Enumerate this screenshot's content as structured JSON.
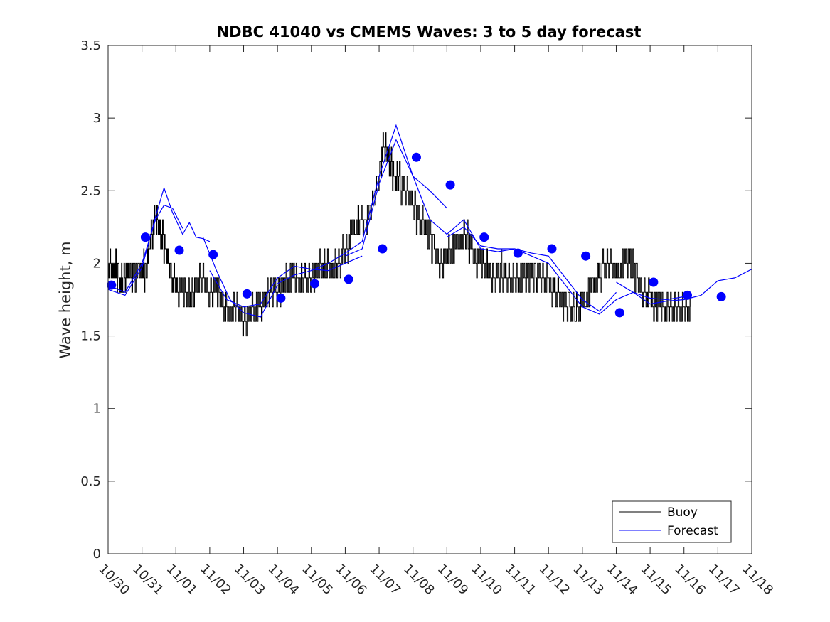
{
  "chart_data": {
    "type": "line",
    "title": "NDBC 41040 vs CMEMS Waves: 3 to 5 day forecast",
    "xlabel": "",
    "ylabel": "Wave height, m",
    "xlim": [
      0,
      19
    ],
    "ylim": [
      0,
      3.5
    ],
    "yticks": [
      0,
      0.5,
      1,
      1.5,
      2,
      2.5,
      3,
      3.5
    ],
    "ytick_labels": [
      "0",
      "0.5",
      "1",
      "1.5",
      "2",
      "2.5",
      "3",
      "3.5"
    ],
    "xtick_labels": [
      "10/30",
      "10/31",
      "11/01",
      "11/02",
      "11/03",
      "11/04",
      "11/05",
      "11/06",
      "11/07",
      "11/08",
      "11/09",
      "11/10",
      "11/11",
      "11/12",
      "11/13",
      "11/14",
      "11/15",
      "11/16",
      "11/17",
      "11/18"
    ],
    "legend": {
      "position": "bottom-right",
      "entries": [
        "Buoy",
        "Forecast"
      ]
    },
    "colors": {
      "buoy": "#000000",
      "forecast": "#0000ff",
      "axes": "#262626"
    },
    "series": [
      {
        "name": "Buoy",
        "color": "#000000",
        "x": [
          0.0,
          0.15,
          0.3,
          0.45,
          0.6,
          0.8,
          1.0,
          1.1,
          1.25,
          1.4,
          1.55,
          1.7,
          1.85,
          2.0,
          2.2,
          2.4,
          2.6,
          2.8,
          3.0,
          3.2,
          3.4,
          3.6,
          3.8,
          4.0,
          4.2,
          4.4,
          4.6,
          4.8,
          5.0,
          5.2,
          5.4,
          5.6,
          5.8,
          6.0,
          6.2,
          6.4,
          6.6,
          6.8,
          7.0,
          7.2,
          7.4,
          7.6,
          7.8,
          8.0,
          8.15,
          8.3,
          8.45,
          8.6,
          8.8,
          9.0,
          9.2,
          9.4,
          9.6,
          9.8,
          10.0,
          10.2,
          10.4,
          10.6,
          10.8,
          11.0,
          11.2,
          11.4,
          11.6,
          11.8,
          12.0,
          12.2,
          12.4,
          12.6,
          12.8,
          13.0,
          13.2,
          13.4,
          13.6,
          13.8,
          14.0,
          14.2,
          14.4,
          14.6,
          14.8,
          15.0,
          15.2,
          15.4,
          15.6,
          15.8,
          16.0,
          16.2,
          16.4,
          16.6,
          16.8,
          17.0,
          17.2
        ],
        "y": [
          1.95,
          2.0,
          1.9,
          1.85,
          1.95,
          1.9,
          2.0,
          1.9,
          2.2,
          2.3,
          2.2,
          2.1,
          1.9,
          1.85,
          1.8,
          1.75,
          1.85,
          1.9,
          1.8,
          1.8,
          1.7,
          1.65,
          1.7,
          1.6,
          1.65,
          1.7,
          1.75,
          1.8,
          1.8,
          1.85,
          1.9,
          1.9,
          1.85,
          1.9,
          1.95,
          2.0,
          1.95,
          2.0,
          2.1,
          2.2,
          2.3,
          2.3,
          2.4,
          2.6,
          2.8,
          2.7,
          2.6,
          2.55,
          2.5,
          2.4,
          2.3,
          2.25,
          2.1,
          2.0,
          2.05,
          2.1,
          2.2,
          2.15,
          2.05,
          2.0,
          1.95,
          1.9,
          1.95,
          1.9,
          1.85,
          1.9,
          1.95,
          1.9,
          1.9,
          1.85,
          1.8,
          1.75,
          1.7,
          1.65,
          1.7,
          1.8,
          1.9,
          1.95,
          2.0,
          1.9,
          2.0,
          2.05,
          1.9,
          1.8,
          1.75,
          1.7,
          1.7,
          1.65,
          1.7,
          1.65,
          1.7
        ]
      },
      {
        "name": "Forecast",
        "color": "#0000ff",
        "segments": [
          {
            "x": [
              0.0,
              0.5,
              1.0,
              1.4,
              1.65,
              1.9,
              2.2,
              2.4,
              2.6,
              2.8,
              3.0
            ],
            "y": [
              1.82,
              1.78,
              1.97,
              2.32,
              2.52,
              2.35,
              2.2,
              2.28,
              2.18,
              2.17,
              2.15
            ]
          },
          {
            "x": [
              0.0,
              0.5,
              1.0,
              1.4,
              1.65,
              1.9,
              2.2
            ],
            "y": [
              1.85,
              1.8,
              2.0,
              2.3,
              2.4,
              2.38,
              2.24
            ]
          },
          {
            "x": [
              2.8,
              3.2,
              3.6,
              4.0,
              4.5,
              5.0
            ],
            "y": [
              2.18,
              1.95,
              1.75,
              1.66,
              1.63,
              1.85
            ]
          },
          {
            "x": [
              3.0,
              3.5,
              4.0,
              4.5,
              5.0,
              5.5,
              6.0,
              6.5,
              7.0,
              7.5
            ],
            "y": [
              1.95,
              1.75,
              1.7,
              1.72,
              1.9,
              1.98,
              1.96,
              1.95,
              2.0,
              2.05
            ]
          },
          {
            "x": [
              5.0,
              5.5,
              6.0,
              6.5,
              7.0,
              7.5,
              8.0,
              8.5,
              9.0,
              9.5,
              10.0
            ],
            "y": [
              1.86,
              1.92,
              1.95,
              2.0,
              2.07,
              2.15,
              2.6,
              2.95,
              2.6,
              2.5,
              2.38
            ]
          },
          {
            "x": [
              7.0,
              7.5,
              8.0,
              8.5,
              9.0,
              9.5,
              10.0,
              10.5,
              11.0,
              11.5,
              12.0
            ],
            "y": [
              2.05,
              2.1,
              2.55,
              2.85,
              2.6,
              2.3,
              2.2,
              2.3,
              2.1,
              2.08,
              2.1
            ]
          },
          {
            "x": [
              10.0,
              10.5,
              11.0,
              11.5,
              12.0,
              12.5,
              13.0,
              13.5,
              14.0,
              14.5,
              15.0
            ],
            "y": [
              2.18,
              2.25,
              2.12,
              2.1,
              2.1,
              2.07,
              2.05,
              1.9,
              1.75,
              1.67,
              1.8
            ]
          },
          {
            "x": [
              12.0,
              12.5,
              13.0,
              13.5,
              14.0,
              14.5,
              15.0,
              15.5,
              16.0,
              16.5,
              17.0
            ],
            "y": [
              2.1,
              2.05,
              2.0,
              1.85,
              1.7,
              1.65,
              1.75,
              1.8,
              1.76,
              1.75,
              1.77
            ]
          },
          {
            "x": [
              15.0,
              15.5,
              16.0,
              16.5,
              17.0,
              17.5,
              18.0,
              18.5,
              19.0
            ],
            "y": [
              1.87,
              1.8,
              1.72,
              1.74,
              1.75,
              1.78,
              1.88,
              1.9,
              1.96
            ]
          }
        ]
      },
      {
        "name": "Forecast points",
        "color": "#0000ff",
        "x": [
          0.1,
          1.1,
          2.1,
          3.1,
          4.1,
          5.1,
          6.1,
          7.1,
          8.1,
          9.1,
          10.1,
          11.1,
          12.1,
          13.1,
          14.1,
          15.1,
          16.1,
          17.1,
          18.1
        ],
        "y": [
          1.85,
          2.18,
          2.09,
          2.06,
          1.79,
          1.76,
          1.86,
          1.89,
          2.1,
          2.73,
          2.54,
          2.18,
          2.07,
          2.1,
          2.05,
          1.66,
          1.87,
          1.78,
          1.77
        ]
      }
    ]
  }
}
